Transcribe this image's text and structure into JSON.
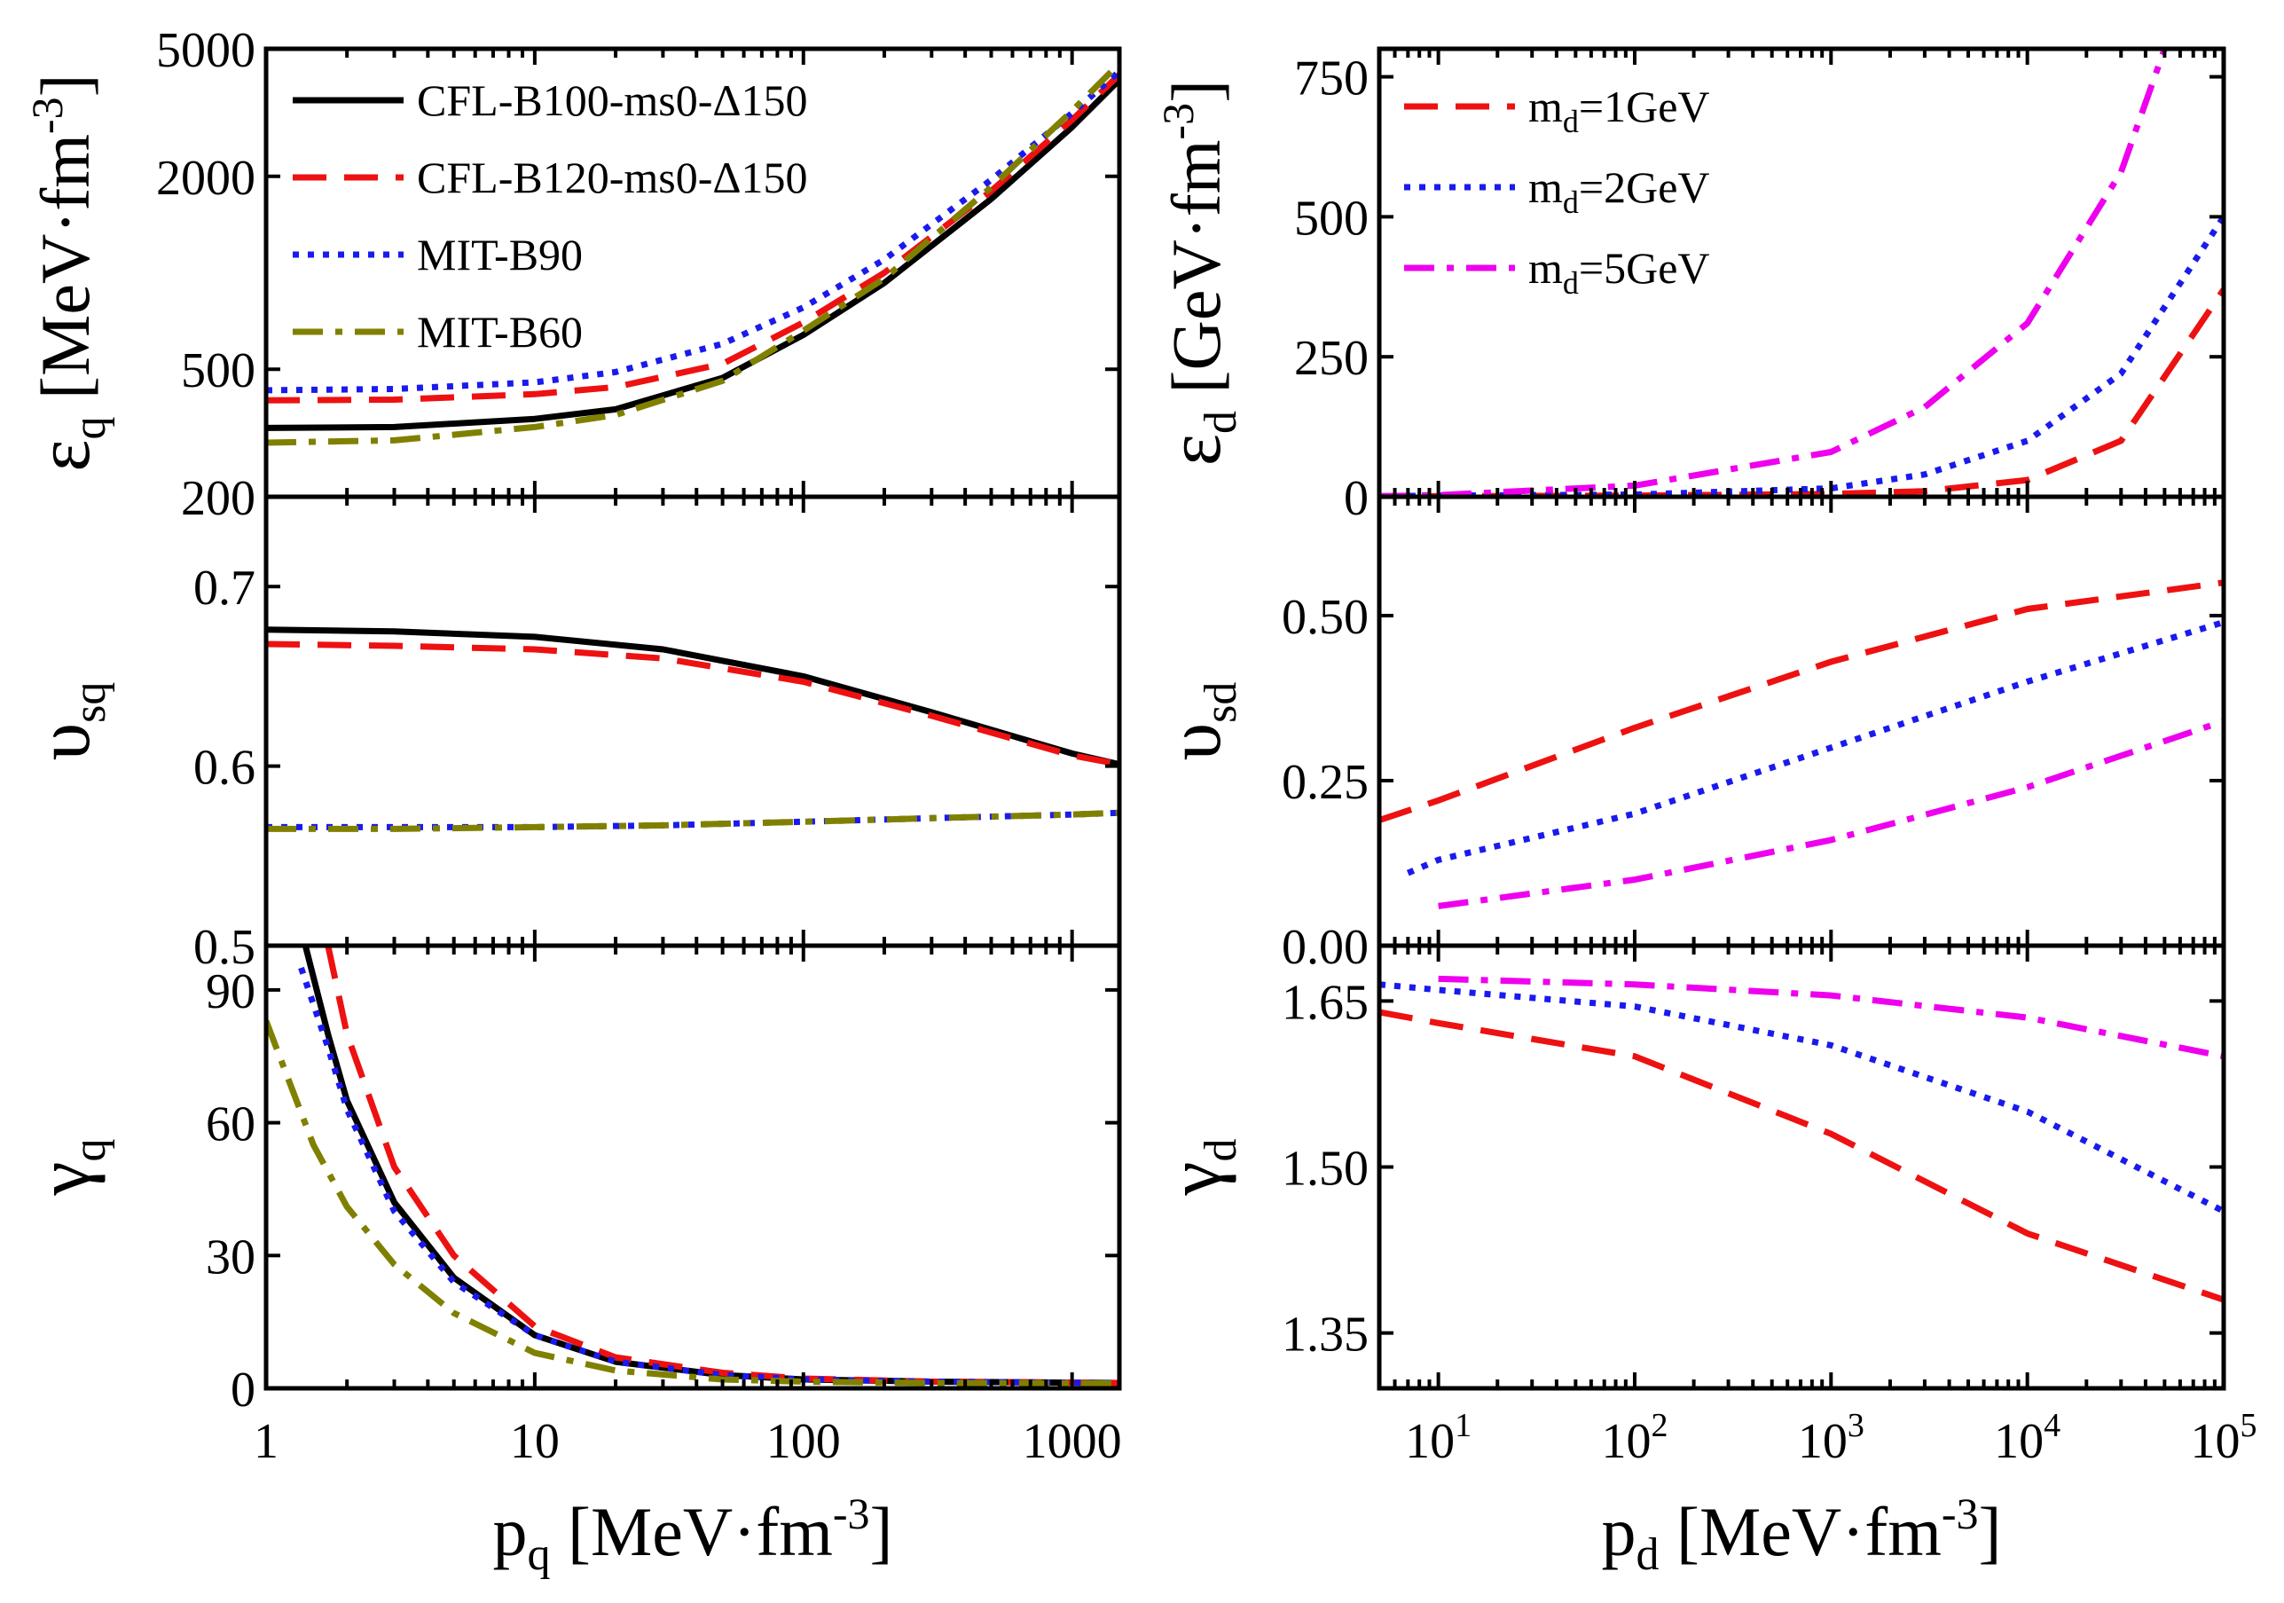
{
  "chart_data": [
    {
      "id": "eq",
      "type": "line",
      "x_scale": "log",
      "y_scale": "log",
      "xlim": [
        1,
        1500
      ],
      "ylim": [
        200,
        5000
      ],
      "yticks": [
        200,
        500,
        2000,
        5000
      ],
      "ytick_labels": [
        "200",
        "500",
        "2000",
        "5000"
      ],
      "ylabel": "ε",
      "ylabel_sub": "q",
      "ylabel_unit": "[MeV·fm",
      "ylabel_sup": "-3",
      "ylabel_close": "]",
      "legend_location": "top-left",
      "series": [
        {
          "name": "CFL-B100-ms0-Δ150",
          "color": "#000000",
          "dash": "solid",
          "x": [
            1,
            3,
            10,
            20,
            50,
            100,
            200,
            500,
            1000,
            1500
          ],
          "y": [
            328,
            330,
            350,
            375,
            470,
            640,
            930,
            1700,
            2850,
            4000
          ]
        },
        {
          "name": "CFL-B120-ms0-Δ150",
          "color": "#ee1111",
          "dash": "dashed",
          "x": [
            1,
            3,
            10,
            20,
            50,
            100,
            200,
            500,
            1000,
            1500
          ],
          "y": [
            400,
            402,
            418,
            440,
            520,
            700,
            1000,
            1800,
            3000,
            4150
          ]
        },
        {
          "name": "MIT-B90",
          "color": "#1a1aee",
          "dash": "dotted",
          "x": [
            1,
            3,
            10,
            20,
            50,
            100,
            200,
            500,
            1000,
            1500
          ],
          "y": [
            430,
            434,
            455,
            490,
            600,
            780,
            1100,
            1950,
            3150,
            4250
          ]
        },
        {
          "name": "MIT-B60",
          "color": "#808000",
          "dash": "dashdot",
          "x": [
            1,
            3,
            10,
            20,
            50,
            100,
            200,
            500,
            1000,
            1500
          ],
          "y": [
            295,
            300,
            330,
            360,
            460,
            660,
            960,
            1850,
            3200,
            4500
          ]
        }
      ]
    },
    {
      "id": "vsq",
      "type": "line",
      "x_scale": "log",
      "y_scale": "linear",
      "xlim": [
        1,
        1500
      ],
      "ylim": [
        0.5,
        0.75
      ],
      "yticks": [
        0.5,
        0.6,
        0.7
      ],
      "ytick_labels": [
        "0.5",
        "0.6",
        "0.7"
      ],
      "ylabel": "υ",
      "ylabel_sub": "sq",
      "series": [
        {
          "name": "CFL-B100-ms0-Δ150",
          "color": "#000000",
          "dash": "solid",
          "x": [
            1,
            3,
            10,
            30,
            100,
            300,
            1000,
            1500
          ],
          "y": [
            0.676,
            0.675,
            0.672,
            0.665,
            0.65,
            0.63,
            0.607,
            0.601
          ]
        },
        {
          "name": "CFL-B120-ms0-Δ150",
          "color": "#ee1111",
          "dash": "dashed",
          "x": [
            1,
            3,
            10,
            30,
            100,
            300,
            1000,
            1500
          ],
          "y": [
            0.668,
            0.667,
            0.665,
            0.66,
            0.647,
            0.628,
            0.606,
            0.601
          ]
        },
        {
          "name": "MIT-B90",
          "color": "#1a1aee",
          "dash": "dotted",
          "x": [
            1,
            3,
            10,
            30,
            100,
            300,
            1000,
            1500
          ],
          "y": [
            0.566,
            0.566,
            0.566,
            0.567,
            0.569,
            0.571,
            0.573,
            0.574
          ]
        },
        {
          "name": "MIT-B60",
          "color": "#808000",
          "dash": "dashdot",
          "x": [
            1,
            3,
            10,
            30,
            100,
            300,
            1000,
            1500
          ],
          "y": [
            0.565,
            0.565,
            0.566,
            0.567,
            0.569,
            0.571,
            0.573,
            0.574
          ]
        }
      ]
    },
    {
      "id": "gq",
      "type": "line",
      "x_scale": "log",
      "y_scale": "linear",
      "xlim": [
        1,
        1500
      ],
      "ylim": [
        0,
        100
      ],
      "yticks": [
        0,
        30,
        60,
        90
      ],
      "ytick_labels": [
        "0",
        "30",
        "60",
        "90"
      ],
      "xticks": [
        1,
        10,
        100,
        1000
      ],
      "xtick_labels": [
        "1",
        "10",
        "100",
        "1000"
      ],
      "ylabel": "γ",
      "ylabel_sub": "q",
      "xlabel": "p",
      "xlabel_sub": "q",
      "xlabel_unit": "[MeV·fm",
      "xlabel_sup": "-3",
      "xlabel_close": "]",
      "series": [
        {
          "name": "CFL-B100-ms0-Δ150",
          "color": "#000000",
          "dash": "solid",
          "x": [
            1.4,
            1.7,
            2,
            3,
            5,
            10,
            20,
            50,
            100,
            300,
            1500
          ],
          "y": [
            100,
            80,
            65,
            42,
            25,
            12,
            6,
            3,
            2,
            1.5,
            1.2
          ]
        },
        {
          "name": "CFL-B120-ms0-Δ150",
          "color": "#ee1111",
          "dash": "dashed",
          "x": [
            1.7,
            2,
            3,
            5,
            10,
            20,
            50,
            100,
            300,
            1500
          ],
          "y": [
            100,
            80,
            50,
            30,
            14,
            7,
            3.5,
            2.2,
            1.5,
            1.2
          ]
        },
        {
          "name": "MIT-B90",
          "color": "#1a1aee",
          "dash": "dotted",
          "x": [
            1.35,
            1.7,
            2,
            3,
            5,
            10,
            20,
            50,
            100,
            300,
            1500
          ],
          "y": [
            95,
            77,
            63,
            40,
            24,
            12,
            6,
            3,
            2,
            1.5,
            1.2
          ]
        },
        {
          "name": "MIT-B60",
          "color": "#808000",
          "dash": "dashdot",
          "x": [
            1,
            1.5,
            2,
            3,
            5,
            10,
            20,
            50,
            100,
            300,
            1500
          ],
          "y": [
            83,
            55,
            41,
            28,
            17,
            8,
            4,
            2,
            1.5,
            1.2,
            1.1
          ]
        }
      ]
    },
    {
      "id": "ed",
      "type": "line",
      "x_scale": "log",
      "y_scale": "linear",
      "xlim": [
        5,
        100000
      ],
      "ylim": [
        0,
        800
      ],
      "yticks": [
        0,
        250,
        500,
        750
      ],
      "ytick_labels": [
        "0",
        "250",
        "500",
        "750"
      ],
      "ylabel": "ε",
      "ylabel_sub": "d",
      "ylabel_unit": "[GeV·fm",
      "ylabel_sup": "-3",
      "ylabel_close": "]",
      "legend_location": "top-left",
      "series": [
        {
          "name": "m",
          "name_sub": "d",
          "name_rest": "=1GeV",
          "color": "#ee1111",
          "dash": "dashed",
          "x": [
            5,
            10,
            100,
            1000,
            3000,
            10000,
            30000,
            100000
          ],
          "y": [
            1,
            1,
            2,
            5,
            10,
            30,
            100,
            370
          ]
        },
        {
          "name": "m",
          "name_sub": "d",
          "name_rest": "=2GeV",
          "color": "#1a1aee",
          "dash": "dotted",
          "x": [
            5,
            10,
            100,
            1000,
            3000,
            10000,
            30000,
            100000
          ],
          "y": [
            1,
            2,
            4,
            15,
            40,
            100,
            220,
            500
          ]
        },
        {
          "name": "m",
          "name_sub": "d",
          "name_rest": "=5GeV",
          "color": "#ee00ee",
          "dash": "dashdot",
          "x": [
            5,
            10,
            100,
            1000,
            3000,
            10000,
            30000,
            50000
          ],
          "y": [
            1,
            3,
            20,
            80,
            160,
            310,
            580,
            800
          ]
        }
      ]
    },
    {
      "id": "vsd",
      "type": "line",
      "x_scale": "log",
      "y_scale": "linear",
      "xlim": [
        5,
        100000
      ],
      "ylim": [
        0,
        0.68
      ],
      "yticks": [
        0.0,
        0.25,
        0.5
      ],
      "ytick_labels": [
        "0.00",
        "0.25",
        "0.50"
      ],
      "ylabel": "υ",
      "ylabel_sub": "sd",
      "series": [
        {
          "name": "m_d=1GeV",
          "color": "#ee1111",
          "dash": "dashed",
          "x": [
            5,
            10,
            100,
            1000,
            10000,
            100000
          ],
          "y": [
            0.19,
            0.22,
            0.33,
            0.43,
            0.51,
            0.55
          ]
        },
        {
          "name": "m_d=2GeV",
          "color": "#1a1aee",
          "dash": "dotted",
          "x": [
            7,
            10,
            100,
            1000,
            10000,
            100000
          ],
          "y": [
            0.11,
            0.13,
            0.2,
            0.3,
            0.4,
            0.49
          ]
        },
        {
          "name": "m_d=5GeV",
          "color": "#ee00ee",
          "dash": "dashdot",
          "x": [
            10,
            100,
            1000,
            10000,
            100000
          ],
          "y": [
            0.06,
            0.1,
            0.16,
            0.24,
            0.34
          ]
        }
      ]
    },
    {
      "id": "gd",
      "type": "line",
      "x_scale": "log",
      "y_scale": "linear",
      "xlim": [
        5,
        100000
      ],
      "ylim": [
        1.3,
        1.7
      ],
      "yticks": [
        1.35,
        1.5,
        1.65
      ],
      "ytick_labels": [
        "1.35",
        "1.50",
        "1.65"
      ],
      "xticks": [
        10,
        100,
        1000,
        10000,
        100000
      ],
      "xtick_bases": [
        "10",
        "10",
        "10",
        "10",
        "10"
      ],
      "xtick_exps": [
        "1",
        "2",
        "3",
        "4",
        "5"
      ],
      "ylabel": "γ",
      "ylabel_sub": "d",
      "xlabel": "p",
      "xlabel_sub": "d",
      "xlabel_unit": "[MeV·fm",
      "xlabel_sup": "-3",
      "xlabel_close": "]",
      "series": [
        {
          "name": "m_d=1GeV",
          "color": "#ee1111",
          "dash": "dashed",
          "x": [
            5,
            10,
            100,
            1000,
            10000,
            100000
          ],
          "y": [
            1.64,
            1.63,
            1.6,
            1.53,
            1.44,
            1.38
          ]
        },
        {
          "name": "m_d=2GeV",
          "color": "#1a1aee",
          "dash": "dotted",
          "x": [
            5,
            10,
            100,
            1000,
            10000,
            100000
          ],
          "y": [
            1.665,
            1.66,
            1.645,
            1.61,
            1.55,
            1.46
          ]
        },
        {
          "name": "m_d=5GeV",
          "color": "#ee00ee",
          "dash": "dashdot",
          "x": [
            10,
            100,
            1000,
            10000,
            100000
          ],
          "y": [
            1.67,
            1.665,
            1.655,
            1.635,
            1.6
          ]
        }
      ]
    }
  ]
}
